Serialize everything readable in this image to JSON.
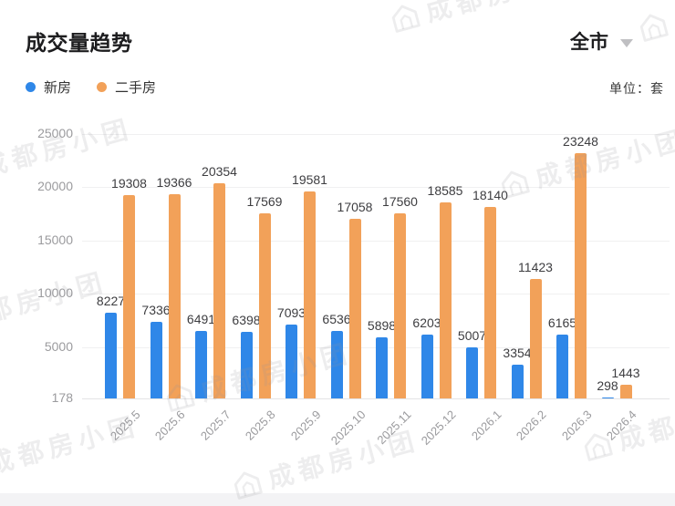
{
  "header": {
    "title": "成交量趋势",
    "region_selector": "全市",
    "unit_label": "单位：套"
  },
  "legend": [
    {
      "label": "新房",
      "color": "#2F87E8"
    },
    {
      "label": "二手房",
      "color": "#F2A159"
    }
  ],
  "watermark": {
    "text": "成都房小团"
  },
  "chart_data": {
    "type": "bar",
    "title": "成交量趋势",
    "unit": "套",
    "categories": [
      "2025.5",
      "2025.6",
      "2025.7",
      "2025.8",
      "2025.9",
      "2025.10",
      "2025.11",
      "2025.12",
      "2026.1",
      "2026.2",
      "2026.3",
      "2026.4"
    ],
    "series": [
      {
        "name": "新房",
        "color": "#2F87E8",
        "values": [
          8227,
          7336,
          6491,
          6398,
          7093,
          6536,
          5898,
          6203,
          5007,
          3354,
          6165,
          298
        ]
      },
      {
        "name": "二手房",
        "color": "#F2A159",
        "values": [
          19308,
          19366,
          20354,
          17569,
          19581,
          17058,
          17560,
          18585,
          18140,
          11423,
          23248,
          1443
        ]
      }
    ],
    "y_ticks": [
      25000,
      20000,
      15000,
      10000,
      5000,
      178
    ],
    "ylim": [
      178,
      26500
    ],
    "grid": true,
    "legend_position": "top-left",
    "value_labels": true
  }
}
